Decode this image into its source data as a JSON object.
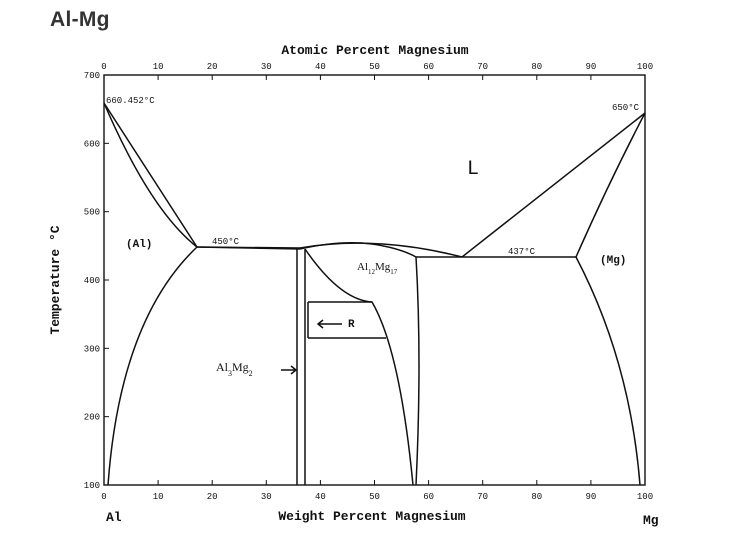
{
  "title": "Al-Mg",
  "diagram": {
    "top_axis": {
      "label": "Atomic Percent Magnesium",
      "ticks": [
        "0",
        "10",
        "20",
        "30",
        "40",
        "50",
        "60",
        "70",
        "80",
        "90",
        "100"
      ]
    },
    "bottom_axis": {
      "label": "Weight Percent Magnesium",
      "ticks": [
        "0",
        "10",
        "20",
        "30",
        "40",
        "50",
        "60",
        "70",
        "80",
        "90",
        "100"
      ],
      "end_left": "Al",
      "end_right": "Mg"
    },
    "left_axis": {
      "label": "Temperature °C",
      "ticks": [
        "700",
        "600",
        "500",
        "400",
        "300",
        "200",
        "100"
      ]
    },
    "annotations": {
      "al_melting": "660.452°C",
      "mg_melting": "650°C",
      "eutectic_left": "450°C",
      "eutectic_right": "437°C",
      "liquid": "L",
      "al_phase": "(Al)",
      "mg_phase": "(Mg)",
      "al12mg17": "Al12Mg17",
      "al3mg2": "Al3Mg2",
      "r_phase": "R"
    },
    "colors": {
      "ink": "#111111",
      "paper": "#ffffff"
    }
  }
}
